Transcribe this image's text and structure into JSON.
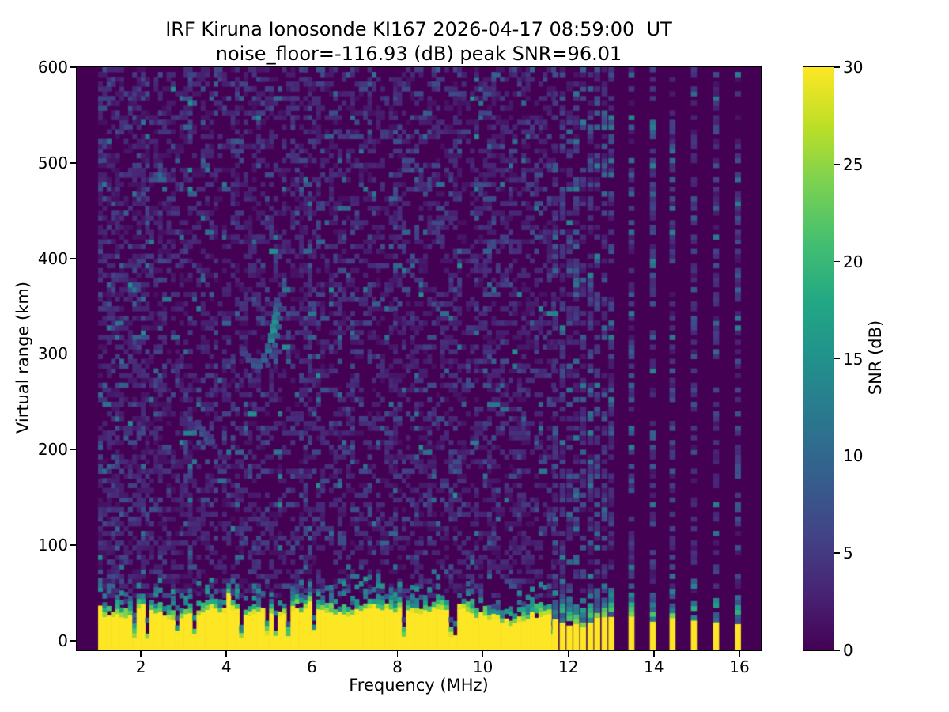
{
  "figure": {
    "title_line1": "IRF Kiruna Ionosonde KI167 2026-04-17 08:59:00  UT",
    "title_line2": "noise_floor=-116.93 (dB) peak SNR=96.01"
  },
  "chart_data": {
    "type": "heatmap",
    "title": "IRF Kiruna Ionosonde KI167 2026-04-17 08:59:00  UT",
    "subtitle": "noise_floor=-116.93 (dB) peak SNR=96.01",
    "station": "KI167",
    "timestamp_ut": "2026-04-17 08:59:00",
    "noise_floor_dB": -116.93,
    "peak_snr_dB": 96.01,
    "xlabel": "Frequency (MHz)",
    "ylabel": "Virtual range (km)",
    "xlim": [
      0.5,
      16.5
    ],
    "ylim": [
      -10,
      600
    ],
    "xticks": [
      2,
      4,
      6,
      8,
      10,
      12,
      14,
      16
    ],
    "yticks": [
      0,
      100,
      200,
      300,
      400,
      500,
      600
    ],
    "grid": false,
    "legend": "none",
    "colorbar": {
      "label": "SNR (dB)",
      "vmin": 0,
      "vmax": 30,
      "ticks": [
        0,
        5,
        10,
        15,
        20,
        25,
        30
      ],
      "colormap": "viridis",
      "position": "right"
    },
    "colormap_stops": [
      "#440154",
      "#482475",
      "#414487",
      "#355f8d",
      "#2a788e",
      "#21918c",
      "#22a884",
      "#44bf70",
      "#7ad151",
      "#bddf26",
      "#fde725"
    ],
    "sweep": {
      "continuous_range_MHz": [
        1.0,
        11.65
      ],
      "freq_step_MHz": 0.1,
      "range_step_km": 5,
      "discrete_freqs_MHz": [
        11.69,
        11.86,
        12.02,
        12.18,
        12.34,
        12.51,
        12.67,
        12.84,
        13.0,
        13.47,
        13.97,
        14.43,
        14.93,
        15.45,
        15.96
      ],
      "discrete_stripe_width_MHz": 0.13
    },
    "ground_clutter": {
      "saturated_top_km_range": [
        16,
        34
      ],
      "transition_depth_km_range": [
        8,
        22
      ],
      "notch_probability": 0.12,
      "notch_top_km_range": [
        2,
        8
      ],
      "stripe_top_km_range": [
        14,
        26
      ],
      "stripe_stack_km": 30,
      "saturated_snr_dB": 30
    },
    "echo_traces": [
      {
        "name": "F-region echo hook",
        "points_MHz_km": [
          [
            4.38,
            298
          ],
          [
            4.5,
            291
          ],
          [
            4.62,
            286
          ],
          [
            4.74,
            285
          ],
          [
            4.86,
            291
          ],
          [
            4.95,
            301
          ],
          [
            5.02,
            312
          ],
          [
            5.07,
            322
          ],
          [
            5.11,
            331
          ],
          [
            5.14,
            340
          ],
          [
            5.17,
            349
          ]
        ],
        "intensity_dB": [
          6,
          7,
          8,
          8,
          9,
          11,
          14,
          16,
          15,
          12,
          8
        ]
      },
      {
        "name": "E-region faint echo",
        "points_MHz_km": [
          [
            3.32,
            221
          ],
          [
            3.42,
            214
          ],
          [
            3.52,
            209
          ],
          [
            3.62,
            206
          ]
        ],
        "intensity_dB": [
          6,
          8,
          7,
          6
        ]
      }
    ],
    "noise": {
      "seed": 167,
      "density_low_freq": 0.5,
      "low_freq_limit_MHz": 2.1,
      "density": 0.36,
      "stripe_density": 0.55
    }
  }
}
